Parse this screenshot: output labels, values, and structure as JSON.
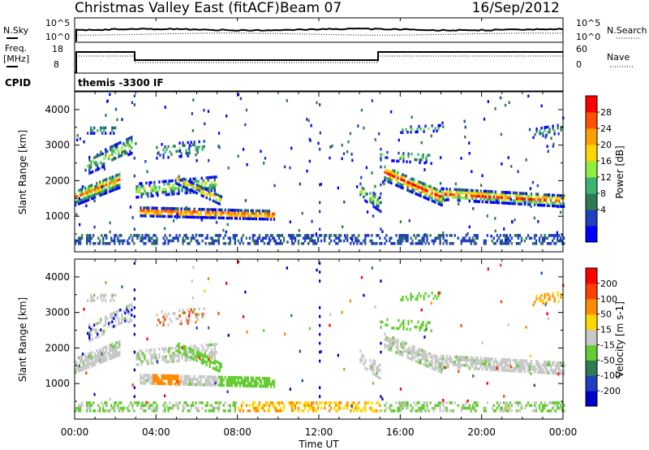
{
  "header": {
    "station": "Christmas Valley East (fitACF)",
    "beam": "Beam 07",
    "date": "16/Sep/2012"
  },
  "status_panel": {
    "nsky_label": "N.Sky",
    "nsearch_label": "N.Search",
    "freq_label_1": "Freq.",
    "freq_label_2": "[MHz]",
    "nave_label": "Nave",
    "cpid_label": "CPID",
    "cpid_value": "themis -3300 IF",
    "nsky_ticks": [
      "10^5",
      "10^0"
    ],
    "nsearch_ticks": [
      "10^5",
      "10^0"
    ],
    "freq_ticks": [
      "18",
      "8"
    ],
    "nave_ticks": [
      "60",
      "0"
    ]
  },
  "chart_data": [
    {
      "type": "heatmap",
      "name": "power",
      "ylabel": "Slant Range [km]",
      "xlabel": "Time UT",
      "y_ticks": [
        "1000",
        "2000",
        "3000",
        "4000"
      ],
      "x_ticks": [
        "00:00",
        "04:00",
        "08:00",
        "12:00",
        "16:00",
        "20:00",
        "00:00"
      ],
      "colorbar_label": "Power [dB]",
      "colorbar_ticks": [
        "28",
        "24",
        "20",
        "16",
        "12",
        "8",
        "4"
      ],
      "colorbar_colors": [
        "#0000ff",
        "#1f3fbf",
        "#2e7b4f",
        "#3cb371",
        "#90ee40",
        "#ffd700",
        "#ffa000",
        "#ff5000",
        "#ff0000"
      ]
    },
    {
      "type": "heatmap",
      "name": "velocity",
      "ylabel": "Slant Range [km]",
      "xlabel": "Time UT",
      "y_ticks": [
        "1000",
        "2000",
        "3000",
        "4000"
      ],
      "x_ticks": [
        "00:00",
        "04:00",
        "08:00",
        "12:00",
        "16:00",
        "20:00",
        "00:00"
      ],
      "colorbar_label": "Velocity [m s-1]",
      "colorbar_ticks": [
        "200",
        "100",
        "50",
        "15",
        "-15",
        "-50",
        "-100",
        "-200"
      ],
      "colorbar_colors": [
        "#0000cc",
        "#1f3fbf",
        "#2e7b4f",
        "#66cc33",
        "#c8c8c8",
        "#ffd700",
        "#ff8c00",
        "#ff4000",
        "#ff0000"
      ]
    }
  ]
}
